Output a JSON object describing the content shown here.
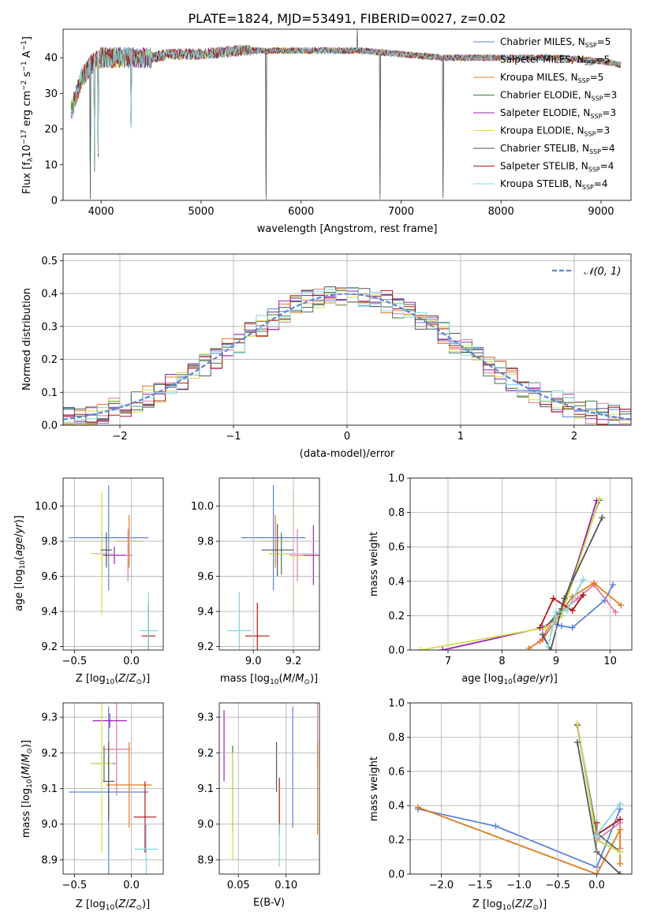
{
  "figure": {
    "title": "PLATE=1824, MJD=53491, FIBERID=0027, z=0.02"
  },
  "colors": {
    "Chabrier MILES": "#5b84d9",
    "Salpeter MILES": "#e377a8",
    "Kroupa MILES": "#e07b22",
    "Chabrier ELODIE": "#3d7a4a",
    "Salpeter ELODIE": "#9a23b5",
    "Kroupa ELODIE": "#d4e04a",
    "Chabrier STELIB": "#555555",
    "Salpeter STELIB": "#b01515",
    "Kroupa STELIB": "#7fd8e0",
    "gaussian": "#5b84d9"
  },
  "chart_data": [
    {
      "id": "spectrum",
      "type": "line",
      "title": "PLATE=1824, MJD=53491, FIBERID=0027, z=0.02",
      "xlabel": "wavelength [Angstrom, rest frame]",
      "ylabel": "Flux [fλ10⁻¹⁷ erg cm⁻² s⁻¹ A⁻¹]",
      "xlim": [
        3620,
        9300
      ],
      "ylim": [
        0,
        48
      ],
      "xticks": [
        "4000",
        "5000",
        "6000",
        "7000",
        "8000",
        "9000"
      ],
      "yticks": [
        "0",
        "10",
        "20",
        "30",
        "40"
      ],
      "legend_position": "top-right",
      "series": [
        {
          "name": "Chabrier MILES, N$_{SSP}$=5"
        },
        {
          "name": "Salpeter MILES, N$_{SSP}$=5"
        },
        {
          "name": "Kroupa MILES, N$_{SSP}$=5"
        },
        {
          "name": "Chabrier ELODIE, N$_{SSP}$=3"
        },
        {
          "name": "Salpeter ELODIE, N$_{SSP}$=3"
        },
        {
          "name": "Kroupa ELODIE, N$_{SSP}$=3"
        },
        {
          "name": "Chabrier STELIB, N$_{SSP}$=4"
        },
        {
          "name": "Salpeter STELIB, N$_{SSP}$=4"
        },
        {
          "name": "Kroupa STELIB, N$_{SSP}$=4"
        }
      ],
      "continuum": [
        [
          3700,
          25
        ],
        [
          3800,
          34
        ],
        [
          3900,
          38
        ],
        [
          4000,
          40
        ],
        [
          4200,
          40
        ],
        [
          4500,
          40
        ],
        [
          4700,
          41
        ],
        [
          5000,
          41
        ],
        [
          5400,
          42
        ],
        [
          5800,
          42
        ],
        [
          6200,
          42
        ],
        [
          6600,
          42
        ],
        [
          7000,
          41
        ],
        [
          7400,
          40
        ],
        [
          7800,
          40
        ],
        [
          8200,
          40
        ],
        [
          8600,
          40
        ],
        [
          9000,
          39
        ],
        [
          9200,
          38
        ]
      ],
      "spikes_down": [
        [
          3890,
          0
        ],
        [
          3935,
          8
        ],
        [
          3970,
          12
        ],
        [
          4300,
          20
        ],
        [
          5650,
          0
        ],
        [
          6790,
          0
        ],
        [
          7420,
          0
        ]
      ],
      "spikes_up": [
        [
          6560,
          48
        ]
      ]
    },
    {
      "id": "residuals",
      "type": "line",
      "xlabel": "(data-model)/error",
      "ylabel": "Normed distribution",
      "xlim": [
        -2.5,
        2.5
      ],
      "ylim": [
        0,
        0.52
      ],
      "xticks": [
        "-2",
        "-1",
        "0",
        "1",
        "2"
      ],
      "yticks": [
        "0.0",
        "0.1",
        "0.2",
        "0.3",
        "0.4",
        "0.5"
      ],
      "legend": [
        {
          "name": "N(0,1)"
        }
      ],
      "bin_width": 0.1
    },
    {
      "id": "age_vs_Z",
      "type": "scatter",
      "xlabel": "Z [log10(Z/Z⊙)]",
      "ylabel": "age  [log10(age/yr)]",
      "xlim": [
        -0.6,
        0.28
      ],
      "ylim": [
        9.18,
        10.16
      ],
      "xticks": [
        "-0.5",
        "0.0"
      ],
      "yticks": [
        "9.2",
        "9.4",
        "9.6",
        "9.8",
        "10.0"
      ],
      "points": [
        {
          "s": "Chabrier MILES",
          "x": -0.2,
          "y": 9.82,
          "xerr": 0.35,
          "yerr": 0.3
        },
        {
          "s": "Salpeter MILES",
          "x": -0.03,
          "y": 9.72,
          "xerr": 0.04,
          "yerr": 0.15
        },
        {
          "s": "Kroupa MILES",
          "x": -0.02,
          "y": 9.8,
          "xerr": 0.12,
          "yerr": 0.15
        },
        {
          "s": "Chabrier ELODIE",
          "x": -0.26,
          "y": 9.73,
          "xerr": 0.06,
          "yerr": 0.12
        },
        {
          "s": "Salpeter ELODIE",
          "x": -0.15,
          "y": 9.72,
          "xerr": 0.1,
          "yerr": 0.05
        },
        {
          "s": "Kroupa ELODIE",
          "x": -0.26,
          "y": 9.73,
          "xerr": 0.1,
          "yerr": 0.35
        },
        {
          "s": "Chabrier STELIB",
          "x": -0.22,
          "y": 9.75,
          "xerr": 0.05,
          "yerr": 0.1
        },
        {
          "s": "Salpeter STELIB",
          "x": 0.15,
          "y": 9.26,
          "xerr": 0.06,
          "yerr": 0.19
        },
        {
          "s": "Kroupa STELIB",
          "x": 0.15,
          "y": 9.29,
          "xerr": 0.08,
          "yerr": 0.22
        }
      ]
    },
    {
      "id": "age_vs_mass",
      "type": "scatter",
      "xlabel": "mass [log10(M/M⊙)]",
      "ylabel": "",
      "xlim": [
        8.83,
        9.33
      ],
      "ylim": [
        9.18,
        10.16
      ],
      "xticks": [
        "9.0",
        "9.2"
      ],
      "yticks": [
        "9.2",
        "9.4",
        "9.6",
        "9.8",
        "10.0"
      ],
      "points": [
        {
          "s": "Chabrier MILES",
          "x": 9.1,
          "y": 9.82,
          "xerr": 0.16,
          "yerr": 0.3
        },
        {
          "s": "Salpeter MILES",
          "x": 9.22,
          "y": 9.72,
          "xerr": 0.04,
          "yerr": 0.15
        },
        {
          "s": "Kroupa MILES",
          "x": 9.11,
          "y": 9.8,
          "xerr": 0.07,
          "yerr": 0.15
        },
        {
          "s": "Chabrier ELODIE",
          "x": 9.14,
          "y": 9.73,
          "xerr": 0.06,
          "yerr": 0.12
        },
        {
          "s": "Salpeter ELODIE",
          "x": 9.3,
          "y": 9.72,
          "xerr": 0.05,
          "yerr": 0.17
        },
        {
          "s": "Kroupa ELODIE",
          "x": 9.2,
          "y": 9.73,
          "xerr": 0.12,
          "yerr": 0.35
        },
        {
          "s": "Chabrier STELIB",
          "x": 9.12,
          "y": 9.75,
          "xerr": 0.08,
          "yerr": 0.15
        },
        {
          "s": "Salpeter STELIB",
          "x": 9.02,
          "y": 9.26,
          "xerr": 0.06,
          "yerr": 0.19
        },
        {
          "s": "Kroupa STELIB",
          "x": 8.93,
          "y": 9.29,
          "xerr": 0.06,
          "yerr": 0.22
        }
      ]
    },
    {
      "id": "weight_vs_age",
      "type": "line",
      "xlabel": "age  [log10(age/yr)]",
      "ylabel": "mass weight",
      "xlim": [
        6.3,
        10.4
      ],
      "ylim": [
        0,
        1
      ],
      "xticks": [
        "7",
        "8",
        "9",
        "10"
      ],
      "yticks": [
        "0.0",
        "0.2",
        "0.4",
        "0.6",
        "0.8",
        "1.0"
      ],
      "series": [
        {
          "s": "Chabrier MILES",
          "x": [
            9.0,
            9.1,
            9.3,
            9.9,
            10.05
          ],
          "y": [
            0.15,
            0.14,
            0.13,
            0.29,
            0.38
          ]
        },
        {
          "s": "Salpeter MILES",
          "x": [
            8.7,
            9.0,
            9.4,
            9.7,
            10.1
          ],
          "y": [
            0.05,
            0.2,
            0.3,
            0.38,
            0.22
          ]
        },
        {
          "s": "Kroupa MILES",
          "x": [
            8.5,
            8.75,
            9.3,
            9.7,
            10.2
          ],
          "y": [
            0.01,
            0.06,
            0.31,
            0.39,
            0.26
          ]
        },
        {
          "s": "Chabrier ELODIE",
          "x": [
            8.8,
            9.1,
            9.8
          ],
          "y": [
            0.13,
            0.24,
            0.87
          ]
        },
        {
          "s": "Salpeter ELODIE",
          "x": [
            6.9,
            8.75,
            9.1,
            9.75
          ],
          "y": [
            0.0,
            0.13,
            0.2,
            0.87
          ]
        },
        {
          "s": "Kroupa ELODIE",
          "x": [
            6.5,
            8.8,
            9.1,
            9.8
          ],
          "y": [
            0.0,
            0.13,
            0.2,
            0.88
          ]
        },
        {
          "s": "Chabrier STELIB",
          "x": [
            8.75,
            8.9,
            9.15,
            9.85
          ],
          "y": [
            0.09,
            0.0,
            0.3,
            0.77
          ]
        },
        {
          "s": "Salpeter STELIB",
          "x": [
            8.7,
            8.95,
            9.3,
            9.5
          ],
          "y": [
            0.13,
            0.3,
            0.23,
            0.32
          ]
        },
        {
          "s": "Kroupa STELIB",
          "x": [
            8.85,
            9.0,
            9.2,
            9.5
          ],
          "y": [
            0.02,
            0.22,
            0.23,
            0.41
          ]
        }
      ]
    },
    {
      "id": "mass_vs_Z",
      "type": "scatter",
      "xlabel": "Z [log10(Z/Z⊙)]",
      "ylabel": "mass [log10(M/M⊙)]",
      "xlim": [
        -0.6,
        0.28
      ],
      "ylim": [
        8.86,
        9.34
      ],
      "xticks": [
        "-0.5",
        "0.0"
      ],
      "yticks": [
        "8.9",
        "9.0",
        "9.1",
        "9.2",
        "9.3"
      ],
      "points": [
        {
          "s": "Chabrier MILES",
          "x": -0.2,
          "y": 9.09,
          "xerr": 0.35,
          "yerr": 0.24
        },
        {
          "s": "Salpeter MILES",
          "x": -0.13,
          "y": 9.21,
          "xerr": 0.12,
          "yerr": 0.13
        },
        {
          "s": "Kroupa MILES",
          "x": -0.02,
          "y": 9.11,
          "xerr": 0.2,
          "yerr": 0.12
        },
        {
          "s": "Chabrier ELODIE",
          "x": -0.24,
          "y": 9.17,
          "xerr": 0.1,
          "yerr": 0.05
        },
        {
          "s": "Salpeter ELODIE",
          "x": -0.19,
          "y": 9.29,
          "xerr": 0.15,
          "yerr": 0.02
        },
        {
          "s": "Kroupa ELODIE",
          "x": -0.26,
          "y": 9.17,
          "xerr": 0.1,
          "yerr": 0.25
        },
        {
          "s": "Chabrier STELIB",
          "x": -0.2,
          "y": 9.12,
          "xerr": 0.05,
          "yerr": 0.11
        },
        {
          "s": "Salpeter STELIB",
          "x": 0.12,
          "y": 9.02,
          "xerr": 0.1,
          "yerr": 0.1
        },
        {
          "s": "Kroupa STELIB",
          "x": 0.13,
          "y": 8.93,
          "xerr": 0.1,
          "yerr": 0.07
        }
      ]
    },
    {
      "id": "mass_vs_EBV",
      "type": "scatter",
      "xlabel": "E(B-V)",
      "ylabel": "",
      "xlim": [
        0.03,
        0.135
      ],
      "ylim": [
        8.86,
        9.34
      ],
      "xticks": [
        "0.05",
        "0.10"
      ],
      "yticks": [
        "8.9",
        "9.0",
        "9.1",
        "9.2",
        "9.3"
      ],
      "points": [
        {
          "s": "Chabrier MILES",
          "x": 0.107,
          "y": 9.16,
          "yerr": 0.17
        },
        {
          "s": "Salpeter MILES",
          "x": 0.133,
          "y": 9.25,
          "yerr": 0.09
        },
        {
          "s": "Kroupa MILES",
          "x": 0.133,
          "y": 9.1,
          "yerr": 0.13
        },
        {
          "s": "Chabrier ELODIE",
          "x": 0.044,
          "y": 9.1,
          "yerr": 0.12
        },
        {
          "s": "Salpeter ELODIE",
          "x": 0.035,
          "y": 9.22,
          "yerr": 0.1
        },
        {
          "s": "Kroupa ELODIE",
          "x": 0.044,
          "y": 9.05,
          "yerr": 0.15
        },
        {
          "s": "Chabrier STELIB",
          "x": 0.09,
          "y": 9.16,
          "yerr": 0.07
        },
        {
          "s": "Salpeter STELIB",
          "x": 0.093,
          "y": 9.05,
          "yerr": 0.08
        },
        {
          "s": "Kroupa STELIB",
          "x": 0.093,
          "y": 8.94,
          "yerr": 0.06
        }
      ]
    },
    {
      "id": "weight_vs_Z",
      "type": "line",
      "xlabel": "Z [log10(Z/Z⊙)]",
      "ylabel": "mass weight",
      "xlim": [
        -2.4,
        0.45
      ],
      "ylim": [
        0,
        1
      ],
      "xticks": [
        "-2.0",
        "-1.5",
        "-1.0",
        "-0.5",
        "0.0"
      ],
      "yticks": [
        "0.0",
        "0.2",
        "0.4",
        "0.6",
        "0.8",
        "1.0"
      ],
      "series": [
        {
          "s": "Chabrier MILES",
          "x": [
            -2.3,
            -1.3,
            0.0,
            0.3
          ],
          "y": [
            0.38,
            0.28,
            0.04,
            0.38
          ]
        },
        {
          "s": "Salpeter MILES",
          "x": [
            0.0,
            0.3,
            0.3
          ],
          "y": [
            0.2,
            0.3,
            0.15
          ]
        },
        {
          "s": "Kroupa MILES",
          "x": [
            -2.3,
            0.0,
            0.3,
            0.3
          ],
          "y": [
            0.39,
            0.0,
            0.26,
            0.06
          ]
        },
        {
          "s": "Chabrier ELODIE",
          "x": [
            -0.25,
            0.0,
            0.3
          ],
          "y": [
            0.87,
            0.24,
            0.13
          ]
        },
        {
          "s": "Salpeter ELODIE",
          "x": [
            -0.25,
            0.0,
            0.3
          ],
          "y": [
            0.87,
            0.2,
            0.13
          ]
        },
        {
          "s": "Kroupa ELODIE",
          "x": [
            -0.25,
            0.0,
            0.3
          ],
          "y": [
            0.88,
            0.2,
            0.13
          ]
        },
        {
          "s": "Chabrier STELIB",
          "x": [
            -0.25,
            0.0,
            0.3
          ],
          "y": [
            0.77,
            0.13,
            0.0
          ]
        },
        {
          "s": "Salpeter STELIB",
          "x": [
            0.0,
            0.0,
            0.3
          ],
          "y": [
            0.3,
            0.23,
            0.32
          ]
        },
        {
          "s": "Kroupa STELIB",
          "x": [
            0.0,
            0.0,
            0.3
          ],
          "y": [
            0.22,
            0.23,
            0.41
          ]
        }
      ]
    }
  ]
}
